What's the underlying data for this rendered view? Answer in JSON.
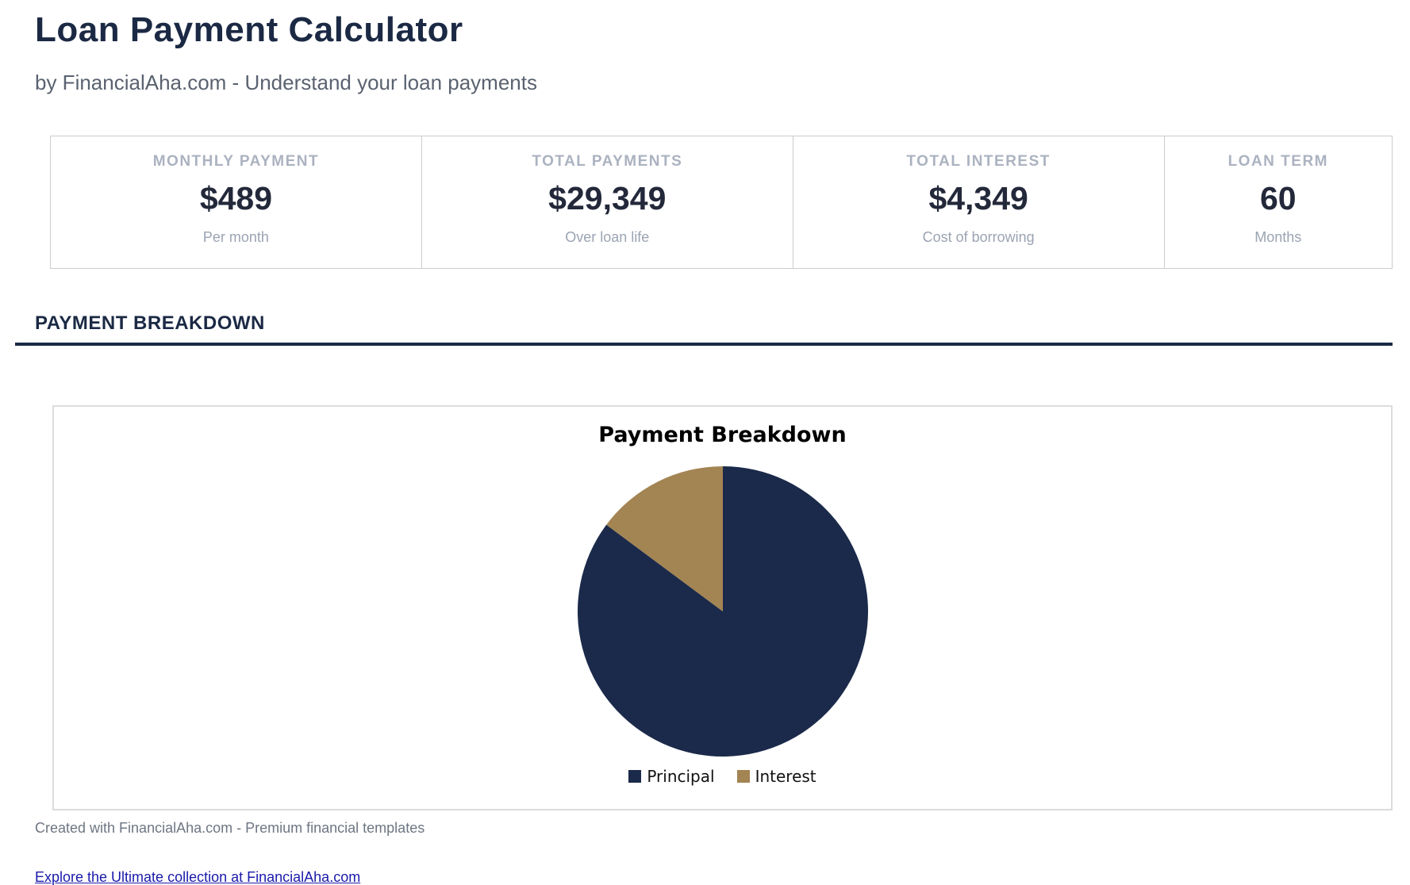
{
  "page": {
    "title": "Loan Payment Calculator",
    "subtitle": "by FinancialAha.com - Understand your loan payments"
  },
  "stats": [
    {
      "label": "MONTHLY PAYMENT",
      "value": "$489",
      "sublabel": "Per month"
    },
    {
      "label": "TOTAL PAYMENTS",
      "value": "$29,349",
      "sublabel": "Over loan life"
    },
    {
      "label": "TOTAL INTEREST",
      "value": "$4,349",
      "sublabel": "Cost of borrowing"
    },
    {
      "label": "LOAN TERM",
      "value": "60",
      "sublabel": "Months"
    }
  ],
  "section": {
    "heading": "PAYMENT BREAKDOWN"
  },
  "chart_data": {
    "type": "pie",
    "title": "Payment Breakdown",
    "slices": [
      {
        "label": "Principal",
        "value": 25000,
        "percent": 85.2,
        "color": "#1b2a4a"
      },
      {
        "label": "Interest",
        "value": 4349,
        "percent": 14.8,
        "color": "#a38453"
      }
    ],
    "start_angle_deg": 0,
    "direction": "clockwise",
    "legend_position": "bottom"
  },
  "footer": {
    "credit": "Created with FinancialAha.com - Premium financial templates",
    "link_text": "Explore the Ultimate collection at FinancialAha.com"
  },
  "colors": {
    "heading_navy": "#1b2944",
    "pie_principal": "#1b2a4a",
    "pie_interest": "#a38453",
    "link_blue": "#1a1aab",
    "muted_gray": "#9ba3b2",
    "border_gray": "#cccccc"
  }
}
